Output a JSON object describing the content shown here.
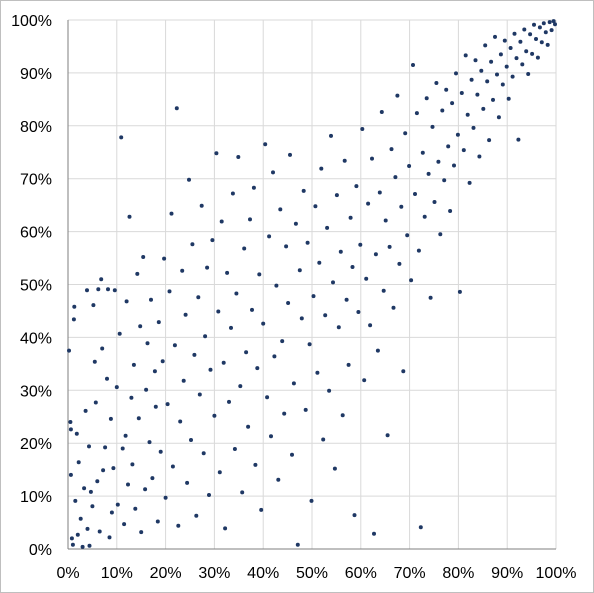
{
  "chart_data": {
    "type": "scatter",
    "title": "",
    "xlabel": "",
    "ylabel": "",
    "xlim": [
      0,
      100
    ],
    "ylim": [
      0,
      100
    ],
    "x_ticks": [
      0,
      10,
      20,
      30,
      40,
      50,
      60,
      70,
      80,
      90,
      100
    ],
    "y_ticks": [
      0,
      10,
      20,
      30,
      40,
      50,
      60,
      70,
      80,
      90,
      100
    ],
    "x_tick_labels": [
      "0%",
      "10%",
      "20%",
      "30%",
      "40%",
      "50%",
      "60%",
      "70%",
      "80%",
      "90%",
      "100%"
    ],
    "y_tick_labels": [
      "0%",
      "10%",
      "20%",
      "30%",
      "40%",
      "50%",
      "60%",
      "70%",
      "80%",
      "90%",
      "100%"
    ],
    "grid": true,
    "legend": "none",
    "colors": {
      "point": "#1f3864",
      "grid": "#d9d9d9",
      "axis": "#7f7f7f",
      "frame": "#bfbfbf"
    },
    "series": [
      {
        "points": [
          [
            0.2,
            37.5
          ],
          [
            0.5,
            24
          ],
          [
            0.6,
            22.6
          ],
          [
            0.6,
            14
          ],
          [
            0.8,
            2
          ],
          [
            1,
            0.8
          ],
          [
            1.2,
            43.4
          ],
          [
            1.3,
            45.8
          ],
          [
            1.5,
            9.1
          ],
          [
            1.8,
            21.8
          ],
          [
            2,
            2.7
          ],
          [
            2.2,
            16.4
          ],
          [
            2.6,
            5.7
          ],
          [
            3,
            0.4
          ],
          [
            3.3,
            11.5
          ],
          [
            3.6,
            26.1
          ],
          [
            3.9,
            48.9
          ],
          [
            4,
            3.8
          ],
          [
            4.3,
            19.4
          ],
          [
            4.4,
            0.6
          ],
          [
            4.7,
            10.8
          ],
          [
            5,
            8.1
          ],
          [
            5.2,
            46.1
          ],
          [
            5.5,
            35.4
          ],
          [
            5.7,
            27.7
          ],
          [
            6,
            12.8
          ],
          [
            6.2,
            49.1
          ],
          [
            6.5,
            3.3
          ],
          [
            6.8,
            51
          ],
          [
            7,
            37.9
          ],
          [
            7.2,
            14.9
          ],
          [
            7.6,
            19.2
          ],
          [
            8,
            32.2
          ],
          [
            8.2,
            49.1
          ],
          [
            8.5,
            2.2
          ],
          [
            8.8,
            24.6
          ],
          [
            9,
            6.9
          ],
          [
            9.3,
            15.3
          ],
          [
            9.6,
            48.9
          ],
          [
            10,
            30.6
          ],
          [
            10.2,
            8.4
          ],
          [
            10.6,
            40.7
          ],
          [
            10.9,
            77.8
          ],
          [
            11.2,
            19
          ],
          [
            11.5,
            4.7
          ],
          [
            11.8,
            21.4
          ],
          [
            12,
            46.8
          ],
          [
            12.3,
            12.2
          ],
          [
            12.6,
            62.8
          ],
          [
            13,
            28.6
          ],
          [
            13.2,
            16
          ],
          [
            13.5,
            34.8
          ],
          [
            13.8,
            7.6
          ],
          [
            14.2,
            52
          ],
          [
            14.5,
            24.7
          ],
          [
            14.8,
            42.1
          ],
          [
            15,
            3.2
          ],
          [
            15.4,
            55.2
          ],
          [
            15.8,
            11.3
          ],
          [
            16,
            30.1
          ],
          [
            16.3,
            38.9
          ],
          [
            16.7,
            20.2
          ],
          [
            17,
            47.1
          ],
          [
            17.3,
            13.4
          ],
          [
            17.8,
            33.6
          ],
          [
            18,
            26.9
          ],
          [
            18.4,
            5.2
          ],
          [
            18.6,
            42.9
          ],
          [
            19,
            18.4
          ],
          [
            19.4,
            35.5
          ],
          [
            19.7,
            54.9
          ],
          [
            20,
            9.7
          ],
          [
            20.4,
            27.4
          ],
          [
            20.8,
            48.7
          ],
          [
            21.2,
            63.4
          ],
          [
            21.5,
            15.6
          ],
          [
            21.9,
            38.5
          ],
          [
            22.3,
            83.3
          ],
          [
            22.6,
            4.4
          ],
          [
            23,
            24.1
          ],
          [
            23.4,
            52.6
          ],
          [
            23.7,
            31.8
          ],
          [
            24.1,
            44.3
          ],
          [
            24.4,
            12.5
          ],
          [
            24.8,
            69.8
          ],
          [
            25.2,
            20.6
          ],
          [
            25.5,
            57.6
          ],
          [
            25.9,
            36.7
          ],
          [
            26.3,
            6.3
          ],
          [
            26.7,
            47.6
          ],
          [
            27,
            29.2
          ],
          [
            27.4,
            64.9
          ],
          [
            27.8,
            18.1
          ],
          [
            28.1,
            40.2
          ],
          [
            28.5,
            53.2
          ],
          [
            28.9,
            10.2
          ],
          [
            29.2,
            33.9
          ],
          [
            29.6,
            58.4
          ],
          [
            30,
            25.2
          ],
          [
            30.4,
            74.8
          ],
          [
            30.8,
            44.9
          ],
          [
            31.1,
            14.5
          ],
          [
            31.5,
            61.9
          ],
          [
            31.9,
            35.2
          ],
          [
            32.2,
            3.9
          ],
          [
            32.6,
            52.2
          ],
          [
            33,
            27.8
          ],
          [
            33.4,
            41.8
          ],
          [
            33.8,
            67.2
          ],
          [
            34.2,
            18.9
          ],
          [
            34.5,
            48.3
          ],
          [
            34.9,
            74.1
          ],
          [
            35.3,
            30.8
          ],
          [
            35.7,
            10.7
          ],
          [
            36.1,
            56.8
          ],
          [
            36.5,
            37.2
          ],
          [
            36.9,
            23.1
          ],
          [
            37.3,
            62.3
          ],
          [
            37.7,
            45.2
          ],
          [
            38.1,
            68.3
          ],
          [
            38.4,
            15.9
          ],
          [
            38.8,
            34.2
          ],
          [
            39.2,
            51.9
          ],
          [
            39.6,
            7.4
          ],
          [
            40,
            42.6
          ],
          [
            40.4,
            76.5
          ],
          [
            40.8,
            28.7
          ],
          [
            41.2,
            59.1
          ],
          [
            41.6,
            21.3
          ],
          [
            42,
            71.2
          ],
          [
            42.3,
            36.4
          ],
          [
            42.7,
            49.8
          ],
          [
            43.1,
            13.1
          ],
          [
            43.5,
            64.2
          ],
          [
            43.9,
            39.3
          ],
          [
            44.3,
            25.6
          ],
          [
            44.7,
            57.2
          ],
          [
            45.1,
            46.5
          ],
          [
            45.5,
            74.5
          ],
          [
            45.9,
            17.8
          ],
          [
            46.3,
            31.3
          ],
          [
            46.7,
            61.5
          ],
          [
            47.1,
            0.8
          ],
          [
            47.5,
            52.7
          ],
          [
            47.9,
            43.6
          ],
          [
            48.3,
            67.7
          ],
          [
            48.7,
            26.3
          ],
          [
            49.1,
            57.9
          ],
          [
            49.5,
            38.7
          ],
          [
            49.9,
            9.1
          ],
          [
            50.3,
            47.8
          ],
          [
            50.7,
            64.8
          ],
          [
            51.1,
            33.3
          ],
          [
            51.5,
            54.1
          ],
          [
            51.9,
            71.9
          ],
          [
            52.3,
            20.7
          ],
          [
            52.7,
            44.2
          ],
          [
            53.1,
            60.7
          ],
          [
            53.5,
            29.9
          ],
          [
            53.9,
            78.1
          ],
          [
            54.3,
            50.4
          ],
          [
            54.7,
            15.2
          ],
          [
            55.1,
            66.9
          ],
          [
            55.5,
            41.9
          ],
          [
            55.9,
            56.2
          ],
          [
            56.3,
            25.3
          ],
          [
            56.7,
            73.4
          ],
          [
            57.1,
            47.1
          ],
          [
            57.5,
            34.8
          ],
          [
            57.9,
            62.6
          ],
          [
            58.3,
            53.3
          ],
          [
            58.7,
            6.4
          ],
          [
            59.1,
            68.6
          ],
          [
            59.5,
            44.8
          ],
          [
            59.9,
            57.5
          ],
          [
            60.3,
            79.4
          ],
          [
            60.7,
            31.9
          ],
          [
            61.1,
            51.1
          ],
          [
            61.5,
            65.3
          ],
          [
            61.9,
            42.3
          ],
          [
            62.3,
            73.8
          ],
          [
            62.7,
            2.9
          ],
          [
            63.1,
            55.7
          ],
          [
            63.5,
            37.5
          ],
          [
            63.9,
            67.4
          ],
          [
            64.3,
            82.6
          ],
          [
            64.7,
            48.8
          ],
          [
            65.1,
            62.1
          ],
          [
            65.5,
            21.5
          ],
          [
            65.9,
            57.1
          ],
          [
            66.3,
            75.6
          ],
          [
            66.7,
            45.6
          ],
          [
            67.1,
            70.3
          ],
          [
            67.5,
            85.7
          ],
          [
            67.9,
            53.9
          ],
          [
            68.3,
            64.7
          ],
          [
            68.7,
            33.6
          ],
          [
            69.1,
            78.6
          ],
          [
            69.5,
            59.3
          ],
          [
            69.9,
            72.4
          ],
          [
            70.3,
            50.8
          ],
          [
            70.7,
            91.5
          ],
          [
            71.1,
            67.1
          ],
          [
            71.5,
            82.4
          ],
          [
            71.9,
            56.4
          ],
          [
            72.3,
            4.1
          ],
          [
            72.7,
            74.9
          ],
          [
            73.1,
            62.8
          ],
          [
            73.5,
            85.2
          ],
          [
            73.9,
            70.9
          ],
          [
            74.3,
            47.5
          ],
          [
            74.7,
            79.8
          ],
          [
            75.1,
            65.6
          ],
          [
            75.5,
            88.1
          ],
          [
            75.9,
            73.2
          ],
          [
            76.3,
            59.5
          ],
          [
            76.7,
            82.9
          ],
          [
            77.1,
            69.7
          ],
          [
            77.5,
            86.8
          ],
          [
            77.9,
            76.1
          ],
          [
            78.3,
            63.9
          ],
          [
            78.7,
            84.3
          ],
          [
            79.1,
            72.5
          ],
          [
            79.5,
            89.9
          ],
          [
            79.9,
            78.3
          ],
          [
            80.3,
            48.6
          ],
          [
            80.7,
            86.2
          ],
          [
            81.1,
            75.4
          ],
          [
            81.5,
            93.3
          ],
          [
            81.9,
            82.1
          ],
          [
            82.3,
            69.2
          ],
          [
            82.7,
            88.7
          ],
          [
            83.1,
            79.6
          ],
          [
            83.5,
            92.4
          ],
          [
            83.9,
            85.9
          ],
          [
            84.3,
            74.2
          ],
          [
            84.7,
            90.4
          ],
          [
            85.1,
            83.2
          ],
          [
            85.5,
            95.2
          ],
          [
            85.9,
            88.4
          ],
          [
            86.3,
            77.3
          ],
          [
            86.7,
            92.1
          ],
          [
            87.1,
            84.9
          ],
          [
            87.5,
            96.8
          ],
          [
            87.9,
            89.7
          ],
          [
            88.3,
            81.6
          ],
          [
            88.7,
            93.5
          ],
          [
            89.1,
            87.8
          ],
          [
            89.5,
            96.1
          ],
          [
            89.9,
            91.2
          ],
          [
            90.3,
            85.1
          ],
          [
            90.7,
            94.7
          ],
          [
            91.1,
            89.3
          ],
          [
            91.5,
            97.4
          ],
          [
            91.9,
            92.8
          ],
          [
            92.3,
            77.4
          ],
          [
            92.7,
            95.9
          ],
          [
            93.1,
            91.6
          ],
          [
            93.5,
            98.2
          ],
          [
            93.9,
            94.1
          ],
          [
            94.3,
            89.8
          ],
          [
            94.7,
            97.3
          ],
          [
            95.1,
            93.6
          ],
          [
            95.5,
            99.1
          ],
          [
            95.9,
            96.4
          ],
          [
            96.3,
            92.9
          ],
          [
            96.7,
            98.6
          ],
          [
            97.1,
            95.8
          ],
          [
            97.5,
            99.4
          ],
          [
            97.9,
            97.7
          ],
          [
            98.3,
            95.3
          ],
          [
            98.7,
            99.6
          ],
          [
            99.1,
            98.1
          ],
          [
            99.5,
            99.8
          ],
          [
            99.8,
            99.2
          ]
        ]
      }
    ]
  }
}
